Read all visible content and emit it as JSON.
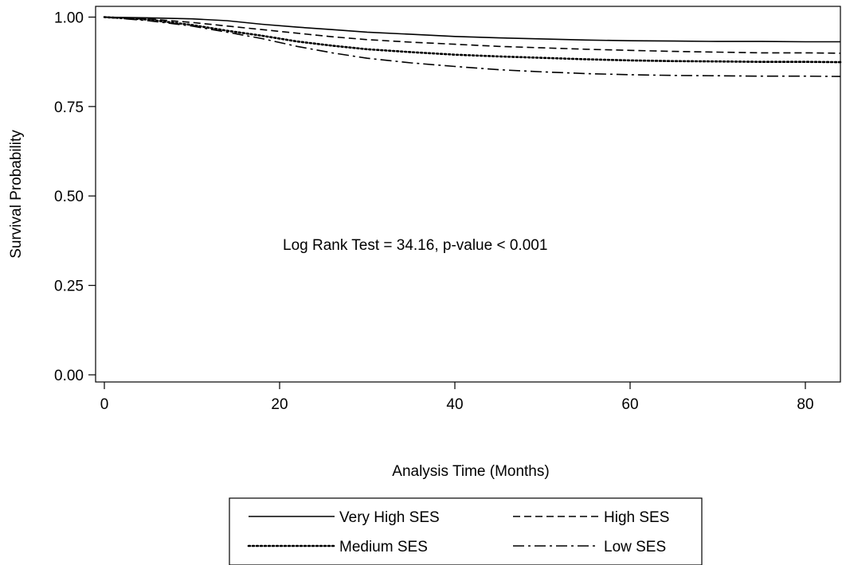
{
  "chart_data": {
    "type": "line",
    "title": "",
    "xlabel": "Analysis Time (Months)",
    "ylabel": "Survival Probability",
    "xlim": [
      -1,
      84
    ],
    "ylim": [
      -0.02,
      1.03
    ],
    "x_ticks": [
      0,
      20,
      40,
      60,
      80
    ],
    "x_tick_labels": [
      "0",
      "20",
      "40",
      "60",
      "80"
    ],
    "y_ticks": [
      0.0,
      0.25,
      0.5,
      0.75,
      1.0
    ],
    "y_tick_labels": [
      "0.00",
      "0.25",
      "0.50",
      "0.75",
      "1.00"
    ],
    "grid": false,
    "legend_position": "bottom",
    "annotation": "Log Rank Test = 34.16, p-value < 0.001",
    "series": [
      {
        "name": "Very High SES",
        "style": "solid",
        "x": [
          0,
          5,
          10,
          14,
          18,
          22,
          26,
          30,
          35,
          40,
          45,
          50,
          55,
          60,
          65,
          70,
          75,
          80,
          84
        ],
        "y": [
          1.0,
          0.998,
          0.995,
          0.99,
          0.98,
          0.972,
          0.965,
          0.958,
          0.952,
          0.946,
          0.942,
          0.939,
          0.936,
          0.934,
          0.933,
          0.932,
          0.932,
          0.931,
          0.931
        ]
      },
      {
        "name": "High SES",
        "style": "dashed",
        "x": [
          0,
          5,
          10,
          14,
          18,
          22,
          26,
          30,
          35,
          40,
          45,
          50,
          55,
          60,
          65,
          70,
          75,
          80,
          84
        ],
        "y": [
          1.0,
          0.995,
          0.985,
          0.975,
          0.965,
          0.955,
          0.945,
          0.937,
          0.93,
          0.924,
          0.918,
          0.914,
          0.91,
          0.907,
          0.904,
          0.902,
          0.9,
          0.9,
          0.899
        ]
      },
      {
        "name": "Medium SES",
        "style": "dotted",
        "x": [
          0,
          5,
          10,
          14,
          18,
          22,
          26,
          30,
          35,
          40,
          45,
          50,
          55,
          60,
          65,
          70,
          75,
          80,
          84
        ],
        "y": [
          1.0,
          0.993,
          0.978,
          0.962,
          0.948,
          0.932,
          0.92,
          0.91,
          0.902,
          0.895,
          0.89,
          0.886,
          0.882,
          0.879,
          0.877,
          0.876,
          0.875,
          0.875,
          0.874
        ]
      },
      {
        "name": "Low SES",
        "style": "dashdot",
        "x": [
          0,
          5,
          10,
          14,
          18,
          22,
          26,
          30,
          35,
          40,
          45,
          50,
          55,
          60,
          65,
          70,
          75,
          80,
          84
        ],
        "y": [
          1.0,
          0.99,
          0.975,
          0.958,
          0.94,
          0.918,
          0.9,
          0.885,
          0.872,
          0.862,
          0.853,
          0.847,
          0.842,
          0.839,
          0.837,
          0.836,
          0.835,
          0.835,
          0.834
        ]
      }
    ]
  }
}
